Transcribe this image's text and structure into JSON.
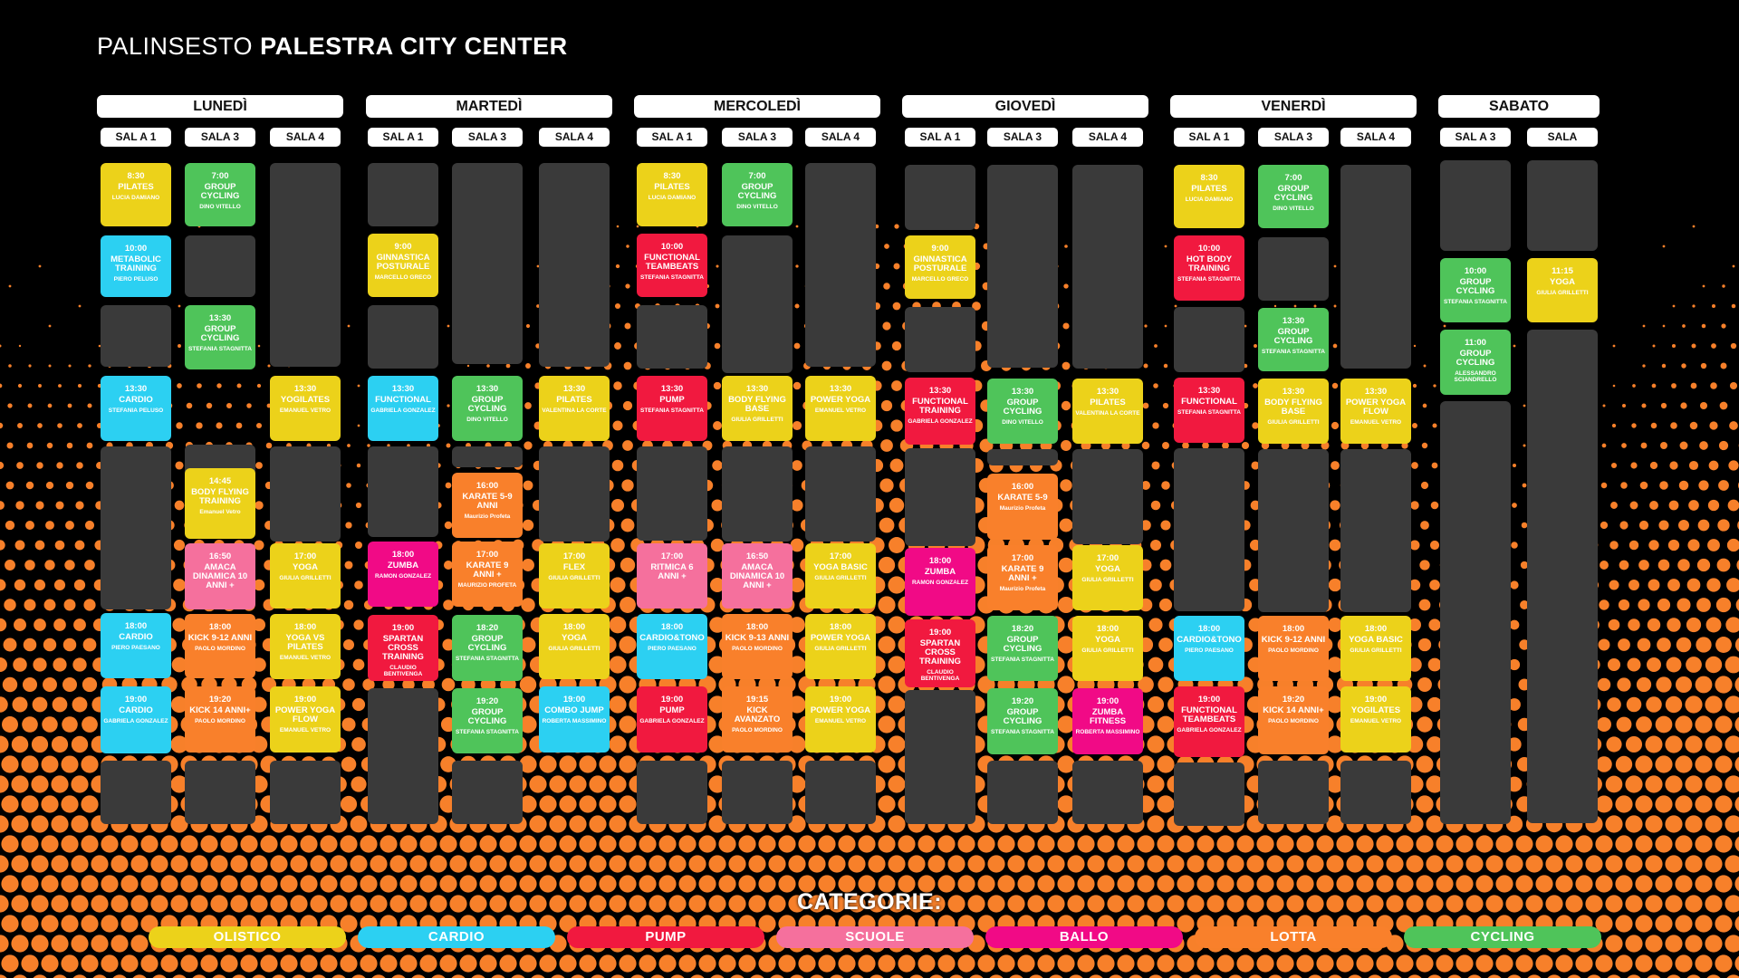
{
  "header": {
    "title_light": "PALINSESTO",
    "title_bold": "PALESTRA CITY CENTER"
  },
  "colors": {
    "olistico": "#ecd21a",
    "cardio": "#2cd0f2",
    "pump": "#f1193f",
    "scuole": "#f5709d",
    "ballo": "#f10a86",
    "lotta": "#f9802b",
    "cycling": "#4fc45a",
    "empty": "#3a3a3a",
    "dots": "#f7802a"
  },
  "categories_title": "CATEGORIE:",
  "categories": [
    {
      "label": "OLISTICO",
      "color": "#ecd21a"
    },
    {
      "label": "CARDIO",
      "color": "#2cd0f2"
    },
    {
      "label": "PUMP",
      "color": "#f1193f"
    },
    {
      "label": "SCUOLE",
      "color": "#f5709d"
    },
    {
      "label": "BALLO",
      "color": "#f10a86"
    },
    {
      "label": "LOTTA",
      "color": "#f9802b"
    },
    {
      "label": "CYCLING",
      "color": "#4fc45a"
    }
  ],
  "days": [
    {
      "name": "LUNEDÌ",
      "rooms": [
        {
          "label": "SAL A 1",
          "slots": [
            {
              "t": "8:30",
              "n": "PILATES",
              "i": "LUCIA DAMIANO",
              "c": "olistico"
            },
            {
              "t": "10:00",
              "n": "METABOLIC TRAINING",
              "i": "PIERO PELUSO",
              "c": "cardio"
            },
            {
              "c": "empty"
            },
            {
              "t": "13:30",
              "n": "CARDIO",
              "i": "STEFANIA PELUSO",
              "c": "cardio"
            },
            {
              "c": "empty"
            },
            {
              "t": "18:00",
              "n": "CARDIO",
              "i": "PIERO PAESANO",
              "c": "cardio"
            },
            {
              "t": "19:00",
              "n": "CARDIO",
              "i": "GABRIELA GONZALEZ",
              "c": "cardio"
            },
            {
              "c": "empty"
            }
          ]
        },
        {
          "label": "SALA 3",
          "slots": [
            {
              "t": "7:00",
              "n": "GROUP CYCLING",
              "i": "DINO VITELLO",
              "c": "cycling"
            },
            {
              "c": "empty"
            },
            {
              "t": "13:30",
              "n": "GROUP CYCLING",
              "i": "STEFANIA STAGNITTA",
              "c": "cycling"
            },
            {
              "c": "empty"
            },
            {
              "t": "14:45",
              "n": "BODY FLYING TRAINING",
              "i": "Emanuel Vetro",
              "c": "olistico"
            },
            {
              "t": "16:50",
              "n": "AMACA DINAMICA 10 ANNI +",
              "i": "",
              "c": "scuole"
            },
            {
              "t": "18:00",
              "n": "KICK 9-12 ANNI",
              "i": "PAOLO MORDINO",
              "c": "lotta"
            },
            {
              "t": "19:20",
              "n": "KICK 14 ANNI+",
              "i": "PAOLO MORDINO",
              "c": "lotta"
            },
            {
              "c": "empty"
            }
          ]
        },
        {
          "label": "SALA 4",
          "slots": [
            {
              "c": "empty"
            },
            {
              "t": "13:30",
              "n": "YOGILATES",
              "i": "EMANUEL VETRO",
              "c": "olistico"
            },
            {
              "c": "empty"
            },
            {
              "t": "17:00",
              "n": "YOGA",
              "i": "GIULIA GRILLETTI",
              "c": "olistico"
            },
            {
              "t": "18:00",
              "n": "YOGA VS PILATES",
              "i": "EMANUEL VETRO",
              "c": "olistico"
            },
            {
              "t": "19:00",
              "n": "POWER YOGA FLOW",
              "i": "EMANUEL VETRO",
              "c": "olistico"
            },
            {
              "c": "empty"
            }
          ]
        }
      ]
    },
    {
      "name": "MARTEDÌ",
      "rooms": [
        {
          "label": "SAL A 1",
          "slots": [
            {
              "c": "empty"
            },
            {
              "t": "9:00",
              "n": "GINNASTICA POSTURALE",
              "i": "MARCELLO GRECO",
              "c": "olistico"
            },
            {
              "c": "empty"
            },
            {
              "t": "13:30",
              "n": "FUNCTIONAL",
              "i": "GABRIELA GONZALEZ",
              "c": "cardio"
            },
            {
              "c": "empty"
            },
            {
              "t": "18:00",
              "n": "ZUMBA",
              "i": "RAMON GONZALEZ",
              "c": "ballo"
            },
            {
              "t": "19:00",
              "n": "SPARTAN CROSS TRAINING",
              "i": "CLAUDIO BENTIVENGA",
              "c": "pump"
            },
            {
              "c": "empty"
            }
          ]
        },
        {
          "label": "SALA 3",
          "slots": [
            {
              "c": "empty"
            },
            {
              "t": "13:30",
              "n": "GROUP CYCLING",
              "i": "DINO VITELLO",
              "c": "cycling"
            },
            {
              "c": "empty"
            },
            {
              "t": "16:00",
              "n": "KARATE 5-9 ANNI",
              "i": "Maurizio Profeta",
              "c": "lotta"
            },
            {
              "t": "17:00",
              "n": "KARATE 9 ANNI +",
              "i": "MAURIZIO PROFETA",
              "c": "lotta"
            },
            {
              "t": "18:20",
              "n": "GROUP CYCLING",
              "i": "STEFANIA STAGNITTA",
              "c": "cycling"
            },
            {
              "t": "19:20",
              "n": "GROUP CYCLING",
              "i": "STEFANIA STAGNITTA",
              "c": "cycling"
            },
            {
              "c": "empty"
            }
          ]
        },
        {
          "label": "SALA 4",
          "slots": [
            {
              "c": "empty"
            },
            {
              "t": "13:30",
              "n": "PILATES",
              "i": "VALENTINA LA CORTE",
              "c": "olistico"
            },
            {
              "c": "empty"
            },
            {
              "t": "17:00",
              "n": "FLEX",
              "i": "GIULIA GRILLETTI",
              "c": "olistico"
            },
            {
              "t": "18:00",
              "n": "YOGA",
              "i": "GIULIA GRILLETTI",
              "c": "olistico"
            },
            {
              "t": "19:00",
              "n": "COMBO JUMP",
              "i": "ROBERTA MASSIMINO",
              "c": "cardio"
            }
          ]
        }
      ]
    },
    {
      "name": "MERCOLEDÌ",
      "rooms": [
        {
          "label": "SAL A 1",
          "slots": [
            {
              "t": "8:30",
              "n": "PILATES",
              "i": "LUCIA DAMIANO",
              "c": "olistico"
            },
            {
              "t": "10:00",
              "n": "FUNCTIONAL TEAMBEATS",
              "i": "STEFANIA STAGNITTA",
              "c": "pump"
            },
            {
              "c": "empty"
            },
            {
              "t": "13:30",
              "n": "PUMP",
              "i": "STEFANIA STAGNITTA",
              "c": "pump"
            },
            {
              "c": "empty"
            },
            {
              "t": "17:00",
              "n": "RITMICA 6 ANNI +",
              "i": "",
              "c": "scuole"
            },
            {
              "t": "18:00",
              "n": "CARDIO&TONO",
              "i": "PIERO PAESANO",
              "c": "cardio"
            },
            {
              "t": "19:00",
              "n": "PUMP",
              "i": "GABRIELA GONZALEZ",
              "c": "pump"
            },
            {
              "c": "empty"
            }
          ]
        },
        {
          "label": "SALA 3",
          "slots": [
            {
              "t": "7:00",
              "n": "GROUP CYCLING",
              "i": "DINO VITELLO",
              "c": "cycling"
            },
            {
              "c": "empty"
            },
            {
              "t": "13:30",
              "n": "BODY FLYING BASE",
              "i": "GIULIA GRILLETTI",
              "c": "olistico"
            },
            {
              "c": "empty"
            },
            {
              "t": "16:50",
              "n": "AMACA DINAMICA 10 ANNI +",
              "i": "",
              "c": "scuole"
            },
            {
              "t": "18:00",
              "n": "KICK 9-13 ANNI",
              "i": "PAOLO MORDINO",
              "c": "lotta"
            },
            {
              "t": "19:15",
              "n": "KICK AVANZATO",
              "i": "PAOLO MORDINO",
              "c": "lotta"
            },
            {
              "c": "empty"
            }
          ]
        },
        {
          "label": "SALA 4",
          "slots": [
            {
              "c": "empty"
            },
            {
              "t": "13:30",
              "n": "POWER YOGA",
              "i": "EMANUEL VETRO",
              "c": "olistico"
            },
            {
              "c": "empty"
            },
            {
              "t": "17:00",
              "n": "YOGA BASIC",
              "i": "GIULIA GRILLETTI",
              "c": "olistico"
            },
            {
              "t": "18:00",
              "n": "POWER YOGA",
              "i": "GIULIA GRILLETTI",
              "c": "olistico"
            },
            {
              "t": "19:00",
              "n": "POWER YOGA",
              "i": "EMANUEL VETRO",
              "c": "olistico"
            },
            {
              "c": "empty"
            }
          ]
        }
      ]
    },
    {
      "name": "GIOVEDÌ",
      "rooms": [
        {
          "label": "SAL A 1",
          "slots": [
            {
              "c": "empty"
            },
            {
              "t": "9:00",
              "n": "GINNASTICA POSTURALE",
              "i": "MARCELLO GRECO",
              "c": "olistico"
            },
            {
              "c": "empty"
            },
            {
              "t": "13:30",
              "n": "FUNCTIONAL TRAINING",
              "i": "GABRIELA GONZALEZ",
              "c": "pump"
            },
            {
              "c": "empty"
            },
            {
              "t": "18:00",
              "n": "ZUMBA",
              "i": "RAMON GONZALEZ",
              "c": "ballo"
            },
            {
              "t": "19:00",
              "n": "SPARTAN CROSS TRAINING",
              "i": "CLAUDIO BENTIVENGA",
              "c": "pump"
            },
            {
              "c": "empty"
            }
          ]
        },
        {
          "label": "SALA 3",
          "slots": [
            {
              "c": "empty"
            },
            {
              "t": "13:30",
              "n": "GROUP CYCLING",
              "i": "DINO VITELLO",
              "c": "cycling"
            },
            {
              "c": "empty"
            },
            {
              "t": "16:00",
              "n": "KARATE 5-9",
              "i": "Maurizio Profeta",
              "c": "lotta"
            },
            {
              "t": "17:00",
              "n": "KARATE 9 ANNI +",
              "i": "Maurizio Profeta",
              "c": "lotta"
            },
            {
              "t": "18:20",
              "n": "GROUP CYCLING",
              "i": "STEFANIA STAGNITTA",
              "c": "cycling"
            },
            {
              "t": "19:20",
              "n": "GROUP CYCLING",
              "i": "STEFANIA STAGNITTA",
              "c": "cycling"
            },
            {
              "c": "empty"
            }
          ]
        },
        {
          "label": "SALA 4",
          "slots": [
            {
              "c": "empty"
            },
            {
              "t": "13:30",
              "n": "PILATES",
              "i": "VALENTINA LA CORTE",
              "c": "olistico"
            },
            {
              "c": "empty"
            },
            {
              "t": "17:00",
              "n": "YOGA",
              "i": "GIULIA GRILLETTI",
              "c": "olistico"
            },
            {
              "t": "18:00",
              "n": "YOGA",
              "i": "GIULIA GRILLETTI",
              "c": "olistico"
            },
            {
              "t": "19:00",
              "n": "ZUMBA FITNESS",
              "i": "ROBERTA MASSIMINO",
              "c": "ballo"
            },
            {
              "c": "empty"
            }
          ]
        }
      ]
    },
    {
      "name": "VENERDÌ",
      "rooms": [
        {
          "label": "SAL A 1",
          "slots": [
            {
              "t": "8:30",
              "n": "PILATES",
              "i": "LUCIA DAMIANO",
              "c": "olistico"
            },
            {
              "t": "10:00",
              "n": "HOT BODY TRAINING",
              "i": "STEFANIA STAGNITTA",
              "c": "pump"
            },
            {
              "c": "empty"
            },
            {
              "t": "13:30",
              "n": "FUNCTIONAL",
              "i": "STEFANIA STAGNITTA",
              "c": "pump"
            },
            {
              "c": "empty"
            },
            {
              "t": "18:00",
              "n": "CARDIO&TONO",
              "i": "PIERO PAESANO",
              "c": "cardio"
            },
            {
              "t": "19:00",
              "n": "FUNCTIONAL TEAMBEATS",
              "i": "GABRIELA GONZALEZ",
              "c": "pump"
            },
            {
              "c": "empty"
            }
          ]
        },
        {
          "label": "SALA 3",
          "slots": [
            {
              "t": "7:00",
              "n": "GROUP CYCLING",
              "i": "DINO VITELLO",
              "c": "cycling"
            },
            {
              "c": "empty"
            },
            {
              "t": "13:30",
              "n": "GROUP CYCLING",
              "i": "STEFANIA STAGNITTA",
              "c": "cycling"
            },
            {
              "t": "13:30",
              "n": "BODY FLYING BASE",
              "i": "GIULIA GRILLETTI",
              "c": "olistico"
            },
            {
              "c": "empty"
            },
            {
              "t": "18:00",
              "n": "KICK 9-12 ANNI",
              "i": "PAOLO MORDINO",
              "c": "lotta"
            },
            {
              "t": "19:20",
              "n": "KICK 14 ANNI+",
              "i": "PAOLO MORDINO",
              "c": "lotta"
            },
            {
              "c": "empty"
            }
          ]
        },
        {
          "label": "SALA 4",
          "slots": [
            {
              "c": "empty"
            },
            {
              "t": "13:30",
              "n": "POWER YOGA FLOW",
              "i": "EMANUEL VETRO",
              "c": "olistico"
            },
            {
              "c": "empty"
            },
            {
              "t": "18:00",
              "n": "YOGA BASIC",
              "i": "GIULIA GRILLETTI",
              "c": "olistico"
            },
            {
              "t": "19:00",
              "n": "YOGILATES",
              "i": "EMANUEL VETRO",
              "c": "olistico"
            },
            {
              "c": "empty"
            }
          ]
        }
      ]
    },
    {
      "name": "SABATO",
      "rooms": [
        {
          "label": "SAL A 3",
          "slots": [
            {
              "c": "empty"
            },
            {
              "t": "10:00",
              "n": "GROUP CYCLING",
              "i": "STEFANIA STAGNITTA",
              "c": "cycling"
            },
            {
              "t": "11:00",
              "n": "GROUP CYCLING",
              "i": "ALESSANDRO SCIANDRELLO",
              "c": "cycling"
            },
            {
              "c": "empty"
            }
          ]
        },
        {
          "label": "SALA",
          "slots": [
            {
              "c": "empty"
            },
            {
              "t": "11:15",
              "n": "YOGA",
              "i": "GIULIA GRILLETTI",
              "c": "olistico"
            },
            {
              "c": "empty"
            }
          ]
        }
      ]
    }
  ]
}
